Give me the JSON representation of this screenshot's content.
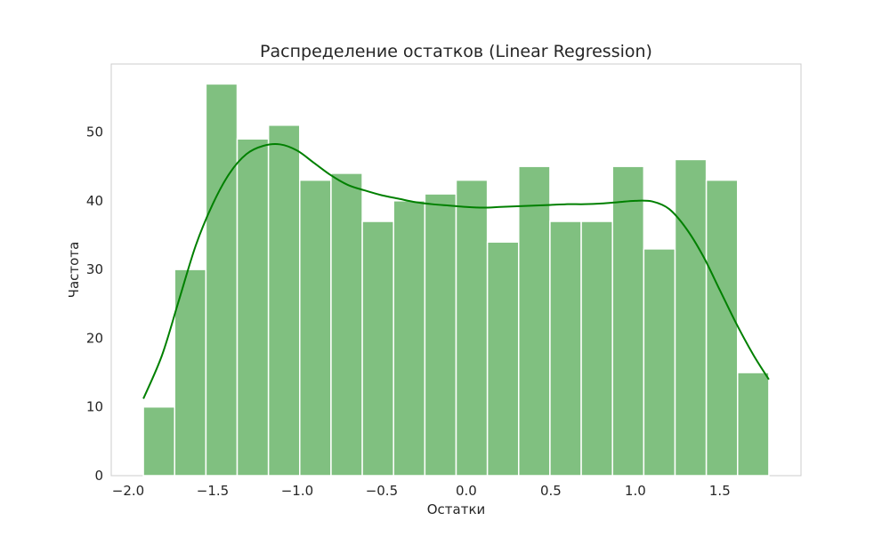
{
  "chart_data": {
    "type": "bar",
    "title": "Распределение остатков (Linear Regression)",
    "xlabel": "Остатки",
    "ylabel": "Частота",
    "xlim": [
      -2.1,
      1.98
    ],
    "ylim": [
      0,
      59.9
    ],
    "grid": false,
    "bar_color": "#80c080",
    "bar_edge_color": "#ffffff",
    "kde_color": "#008000",
    "frame_color": "#cccccc",
    "x_ticks": [
      -2.0,
      -1.5,
      -1.0,
      -0.5,
      0.0,
      0.5,
      1.0,
      1.5
    ],
    "x_tick_labels": [
      "−2.0",
      "−1.5",
      "−1.0",
      "−0.5",
      "0.0",
      "0.5",
      "1.0",
      "1.5"
    ],
    "y_ticks": [
      0,
      10,
      20,
      30,
      40,
      50
    ],
    "y_tick_labels": [
      "0",
      "10",
      "20",
      "30",
      "40",
      "50"
    ],
    "bin_edges": [
      -1.91,
      -1.725,
      -1.54,
      -1.355,
      -1.17,
      -0.985,
      -0.8,
      -0.615,
      -0.43,
      -0.245,
      -0.06,
      0.125,
      0.31,
      0.495,
      0.68,
      0.865,
      1.05,
      1.235,
      1.42,
      1.605,
      1.79
    ],
    "counts": [
      10,
      30,
      57,
      49,
      51,
      43,
      44,
      37,
      40,
      41,
      43,
      34,
      45,
      37,
      37,
      45,
      33,
      46,
      43,
      15
    ],
    "kde": {
      "x": [
        -1.91,
        -1.8,
        -1.7,
        -1.6,
        -1.5,
        -1.4,
        -1.3,
        -1.2,
        -1.1,
        -1.0,
        -0.9,
        -0.8,
        -0.7,
        -0.6,
        -0.5,
        -0.4,
        -0.3,
        -0.2,
        -0.1,
        0.0,
        0.1,
        0.2,
        0.3,
        0.4,
        0.5,
        0.6,
        0.7,
        0.8,
        0.9,
        1.0,
        1.1,
        1.2,
        1.3,
        1.4,
        1.5,
        1.6,
        1.7,
        1.79
      ],
      "y": [
        11.2,
        17.5,
        25.5,
        33.5,
        39.5,
        44.0,
        46.8,
        48.0,
        48.2,
        47.3,
        45.5,
        43.7,
        42.3,
        41.5,
        40.8,
        40.3,
        39.8,
        39.5,
        39.3,
        39.1,
        39.0,
        39.1,
        39.2,
        39.3,
        39.4,
        39.5,
        39.5,
        39.6,
        39.8,
        40.0,
        39.9,
        38.8,
        36.0,
        32.0,
        27.0,
        22.0,
        17.5,
        14.0
      ]
    }
  }
}
